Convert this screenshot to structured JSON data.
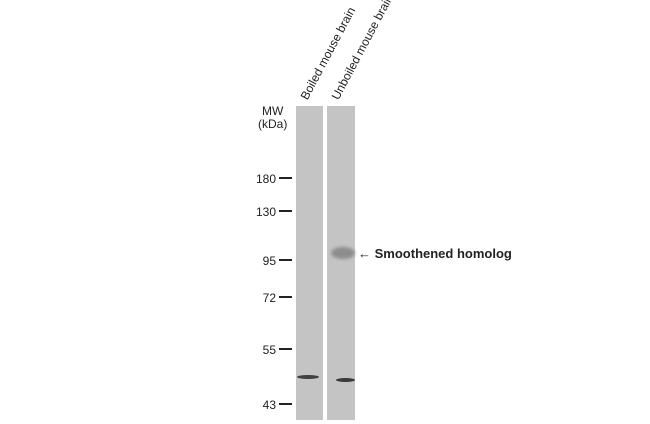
{
  "lanes": [
    {
      "label": "Boiled mouse brain"
    },
    {
      "label": "Unboiled mouse brain"
    }
  ],
  "mw_header": {
    "line1": "MW",
    "line2": "(kDa)"
  },
  "markers": [
    "180",
    "130",
    "95",
    "72",
    "55",
    "43"
  ],
  "target": {
    "arrow": "←",
    "label": "Smoothened homolog"
  }
}
